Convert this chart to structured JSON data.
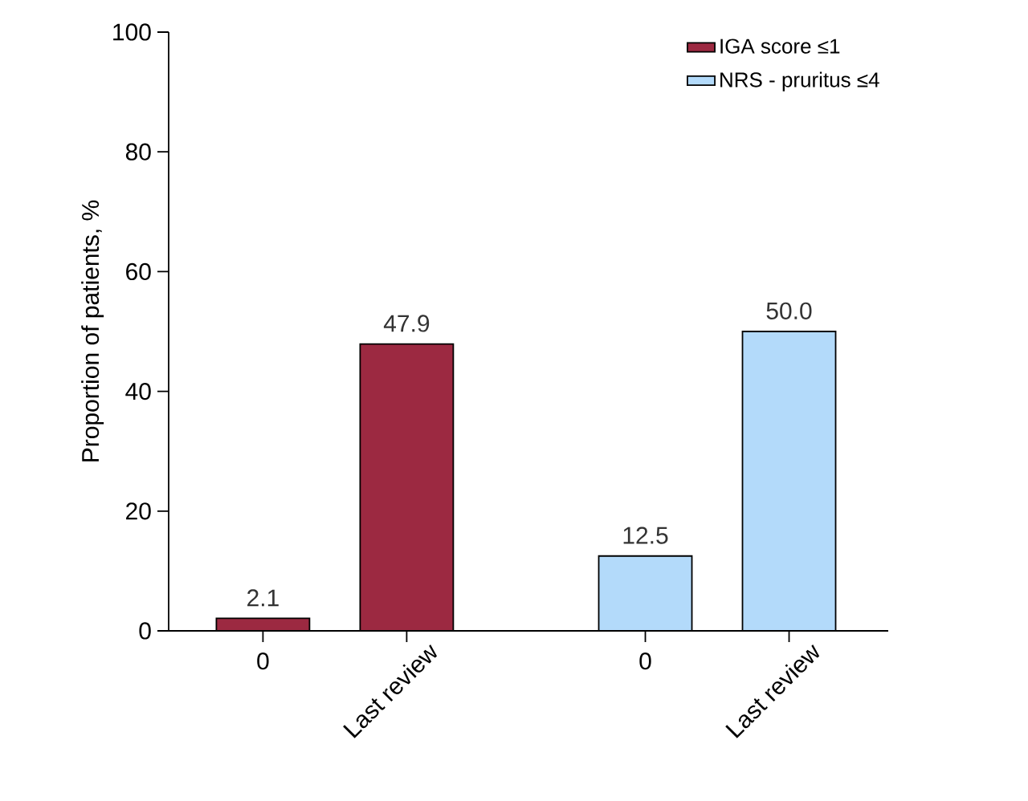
{
  "chart_data": {
    "type": "bar",
    "categories": [
      "0",
      "Last review",
      "0",
      "Last review"
    ],
    "series": [
      {
        "name": "IGA score ≤1",
        "color": "#9c2941",
        "values": [
          2.1,
          47.9,
          null,
          null
        ],
        "value_labels": [
          "2.1",
          "47.9",
          null,
          null
        ]
      },
      {
        "name": "NRS - pruritus ≤4",
        "color": "#b3dafa",
        "values": [
          null,
          null,
          12.5,
          50.0
        ],
        "value_labels": [
          null,
          null,
          "12.5",
          "50.0"
        ]
      }
    ],
    "ylabel": "Proportion of patients, %",
    "ylim": [
      0,
      100
    ],
    "yticks": [
      0,
      20,
      40,
      60,
      80,
      100
    ],
    "legend": "top right",
    "grid": false
  }
}
